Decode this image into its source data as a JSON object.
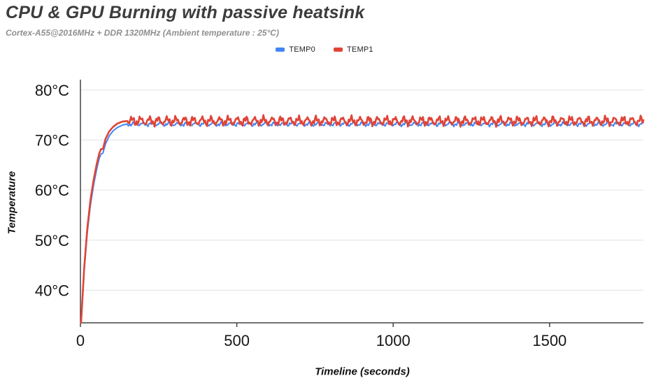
{
  "chart_data": {
    "type": "line",
    "title": "CPU & GPU Burning with passive heatsink",
    "subtitle": "Cortex-A55@2016MHz + DDR 1320MHz (Ambient temperature : 25°C)",
    "xlabel": "Timeline (seconds)",
    "ylabel": "Temperature",
    "xlim": [
      0,
      1800
    ],
    "ylim": [
      33.5,
      81.5
    ],
    "x_ticks": [
      {
        "value": 0,
        "label": "0"
      },
      {
        "value": 500,
        "label": "500"
      },
      {
        "value": 1000,
        "label": "1000"
      },
      {
        "value": 1500,
        "label": "1500"
      }
    ],
    "y_ticks": [
      {
        "value": 40,
        "label": "40°C"
      },
      {
        "value": 50,
        "label": "50°C"
      },
      {
        "value": 60,
        "label": "60°C"
      },
      {
        "value": 70,
        "label": "70°C"
      },
      {
        "value": 80,
        "label": "80°C"
      }
    ],
    "grid": "horizontal",
    "legend_position": "top",
    "axis_color": "#424242",
    "grid_color": "#e3e3e3",
    "series": [
      {
        "name": "TEMP0",
        "color": "#4285f4",
        "line_width": 2,
        "rise_points": [
          [
            2,
            33.5
          ],
          [
            12,
            44.0
          ],
          [
            22,
            51.5
          ],
          [
            32,
            57.0
          ],
          [
            42,
            61.0
          ],
          [
            52,
            64.2
          ],
          [
            60,
            66.3
          ],
          [
            66,
            67.2
          ],
          [
            72,
            67.4
          ],
          [
            80,
            69.2
          ],
          [
            92,
            70.8
          ],
          [
            104,
            71.8
          ],
          [
            118,
            72.5
          ],
          [
            135,
            73.0
          ],
          [
            150,
            73.2
          ]
        ],
        "steady_start_s": 150,
        "steady_end_s": 1800,
        "steady_mean_c": 73.2,
        "noise_amplitude_c": 0.55,
        "noise_period_s": 28
      },
      {
        "name": "TEMP1",
        "color": "#e04438",
        "line_width": 2.6,
        "rise_points": [
          [
            2,
            33.5
          ],
          [
            12,
            44.5
          ],
          [
            22,
            52.3
          ],
          [
            32,
            58.0
          ],
          [
            42,
            62.0
          ],
          [
            52,
            65.2
          ],
          [
            60,
            67.3
          ],
          [
            66,
            68.2
          ],
          [
            72,
            68.2
          ],
          [
            80,
            70.2
          ],
          [
            92,
            71.7
          ],
          [
            104,
            72.6
          ],
          [
            118,
            73.3
          ],
          [
            135,
            73.7
          ],
          [
            150,
            73.8
          ]
        ],
        "steady_start_s": 150,
        "steady_end_s": 1800,
        "steady_mean_c": 73.8,
        "noise_amplitude_c": 1.2,
        "noise_period_s": 28
      }
    ]
  }
}
